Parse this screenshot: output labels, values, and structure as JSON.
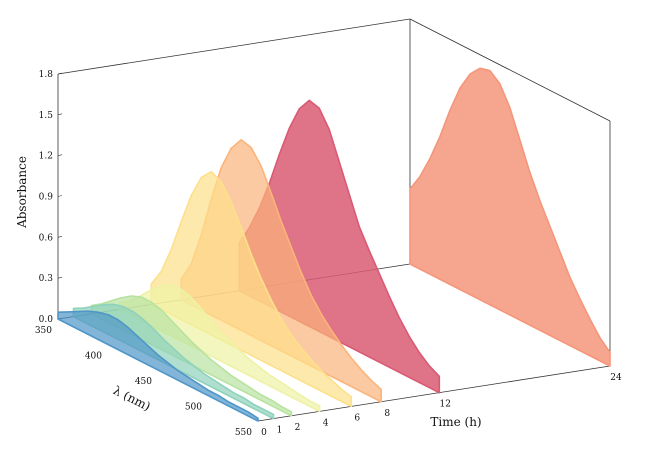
{
  "chart_data": {
    "type": "area",
    "subtype": "3d-waterfall",
    "title": "",
    "xlabel": "λ (nm)",
    "ylabel": "Time (h)",
    "zlabel": "Absorbance",
    "x_ticks": [
      "350",
      "400",
      "450",
      "500",
      "550"
    ],
    "x_range": [
      350,
      550
    ],
    "y_ticks": [
      "0",
      "1",
      "2",
      "4",
      "6",
      "8",
      "12",
      "24"
    ],
    "y_range": [
      0,
      24
    ],
    "z_ticks": [
      "0.0",
      "0.3",
      "0.6",
      "0.9",
      "1.2",
      "1.5",
      "1.8"
    ],
    "z_range": [
      0,
      1.8
    ],
    "wavelengths": [
      350,
      360,
      370,
      380,
      390,
      400,
      410,
      420,
      430,
      440,
      450,
      460,
      470,
      480,
      490,
      500,
      510,
      520,
      530,
      540,
      550
    ],
    "series": [
      {
        "time": 24,
        "color": "#f5967a",
        "values": [
          0.55,
          0.68,
          0.85,
          1.05,
          1.28,
          1.48,
          1.62,
          1.7,
          1.72,
          1.66,
          1.52,
          1.32,
          1.12,
          0.95,
          0.8,
          0.65,
          0.5,
          0.38,
          0.27,
          0.17,
          0.1
        ]
      },
      {
        "time": 12,
        "color": "#d95a72",
        "values": [
          0.35,
          0.5,
          0.68,
          0.9,
          1.15,
          1.38,
          1.56,
          1.66,
          1.64,
          1.52,
          1.32,
          1.12,
          0.92,
          0.78,
          0.65,
          0.52,
          0.4,
          0.3,
          0.22,
          0.16,
          0.12
        ]
      },
      {
        "time": 8,
        "color": "#fbb47a",
        "values": [
          0.15,
          0.3,
          0.55,
          0.85,
          1.12,
          1.3,
          1.4,
          1.38,
          1.28,
          1.12,
          0.95,
          0.8,
          0.65,
          0.52,
          0.42,
          0.34,
          0.27,
          0.21,
          0.16,
          0.12,
          0.09
        ]
      },
      {
        "time": 6,
        "color": "#fde08a",
        "values": [
          0.15,
          0.28,
          0.48,
          0.72,
          0.95,
          1.12,
          1.2,
          1.16,
          1.05,
          0.9,
          0.74,
          0.6,
          0.48,
          0.38,
          0.3,
          0.24,
          0.19,
          0.15,
          0.12,
          0.09,
          0.07
        ]
      },
      {
        "time": 4,
        "color": "#eef2a4",
        "values": [
          0.05,
          0.1,
          0.17,
          0.25,
          0.32,
          0.37,
          0.38,
          0.36,
          0.32,
          0.27,
          0.22,
          0.18,
          0.15,
          0.12,
          0.1,
          0.08,
          0.07,
          0.06,
          0.05,
          0.04,
          0.04
        ]
      },
      {
        "time": 2,
        "color": "#b8e2a0",
        "values": [
          0.06,
          0.11,
          0.17,
          0.23,
          0.28,
          0.31,
          0.31,
          0.29,
          0.25,
          0.21,
          0.17,
          0.14,
          0.11,
          0.09,
          0.07,
          0.06,
          0.05,
          0.04,
          0.04,
          0.03,
          0.03
        ]
      },
      {
        "time": 1,
        "color": "#8fd2bc",
        "values": [
          0.06,
          0.1,
          0.15,
          0.2,
          0.24,
          0.26,
          0.26,
          0.24,
          0.21,
          0.17,
          0.14,
          0.11,
          0.09,
          0.07,
          0.06,
          0.05,
          0.04,
          0.04,
          0.03,
          0.03,
          0.03
        ]
      },
      {
        "time": 0,
        "color": "#4f96c8",
        "values": [
          0.05,
          0.09,
          0.13,
          0.17,
          0.2,
          0.22,
          0.22,
          0.2,
          0.17,
          0.14,
          0.11,
          0.09,
          0.07,
          0.06,
          0.05,
          0.04,
          0.04,
          0.03,
          0.03,
          0.03,
          0.02
        ]
      }
    ]
  }
}
